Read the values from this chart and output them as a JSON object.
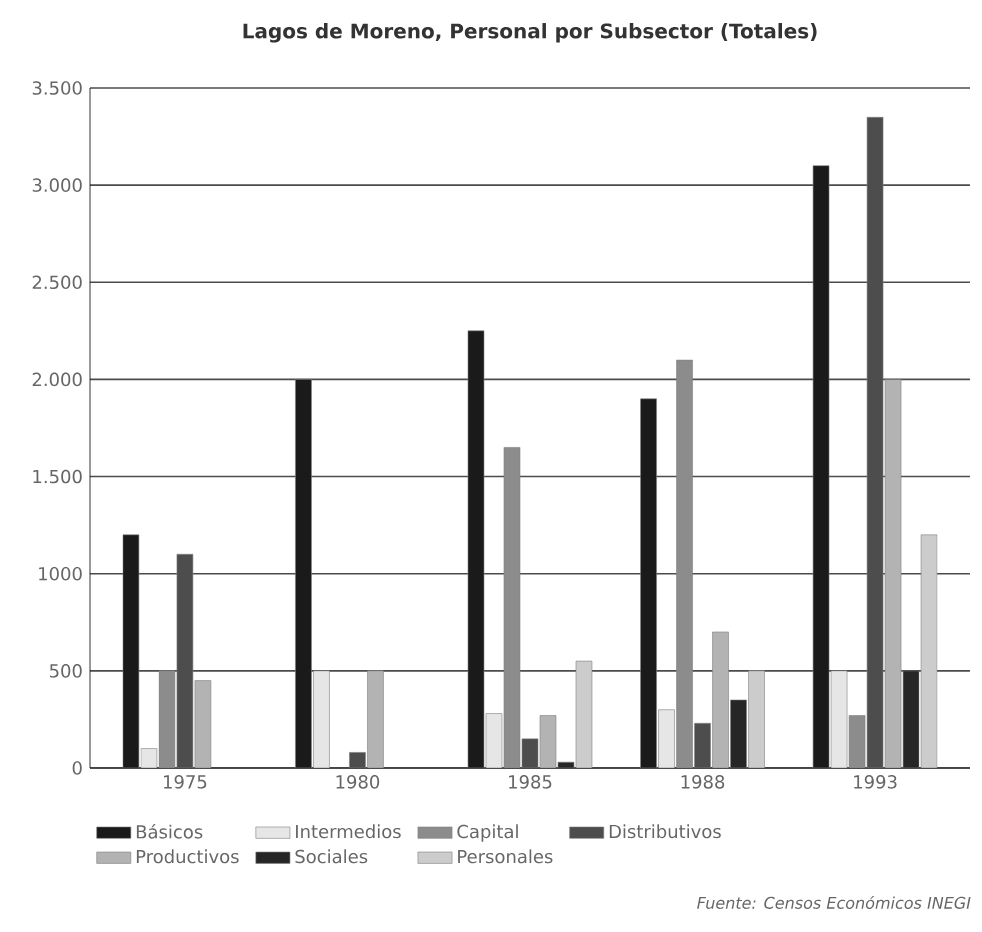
{
  "chart_data": {
    "type": "bar",
    "title": "**Lagos de Moreno**, Personal por Subsector (Totales)",
    "categories": [
      "1975",
      "1980",
      "1985",
      "1988",
      "1993"
    ],
    "series": [
      {
        "name": "Básicos",
        "color": "#1a1a1a",
        "values": [
          1200,
          2000,
          2250,
          1900,
          3100
        ]
      },
      {
        "name": "Intermedios",
        "color": "#e6e6e6",
        "values": [
          100,
          500,
          280,
          300,
          500
        ]
      },
      {
        "name": "Capital",
        "color": "#8c8c8c",
        "values": [
          500,
          null,
          1650,
          2100,
          270
        ]
      },
      {
        "name": "Distributivos",
        "color": "#4d4d4d",
        "values": [
          1100,
          80,
          150,
          230,
          3350
        ]
      },
      {
        "name": "Productivos",
        "color": "#b3b3b3",
        "values": [
          450,
          500,
          270,
          700,
          2000
        ]
      },
      {
        "name": "Sociales",
        "color": "#262626",
        "values": [
          null,
          null,
          30,
          350,
          500
        ]
      },
      {
        "name": "Personales",
        "color": "#cccccc",
        "values": [
          null,
          null,
          550,
          500,
          1200
        ]
      }
    ],
    "ylim": [
      0,
      3500
    ],
    "yticks": [
      {
        "value": 0,
        "label": "0"
      },
      {
        "value": 500,
        "label": "500"
      },
      {
        "value": 1000,
        "label": "1000"
      },
      {
        "value": 1500,
        "label": "1.500"
      },
      {
        "value": 2000,
        "label": "2.000"
      },
      {
        "value": 2500,
        "label": "2.500"
      },
      {
        "value": 3000,
        "label": "3.000"
      },
      {
        "value": 3500,
        "label": "3.500"
      }
    ],
    "grid": "y",
    "legend": "bottom",
    "annotations": [
      "*Fuente: Censos Económicos INEGI*"
    ]
  }
}
